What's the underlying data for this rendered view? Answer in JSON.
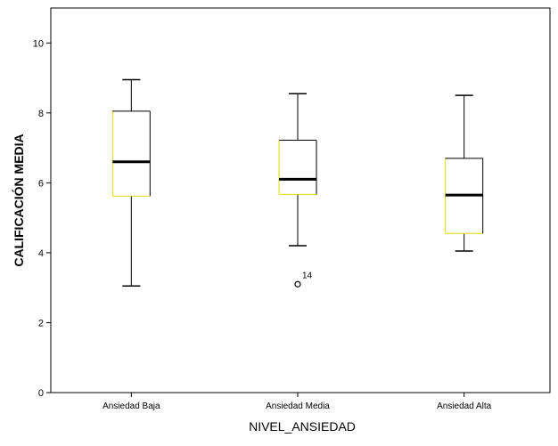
{
  "chart_data": {
    "type": "boxplot",
    "xlabel": "NIVEL_ANSIEDAD",
    "ylabel": "CALIFICACIÓN MEDIA",
    "ylim": [
      0,
      11
    ],
    "yticks": [
      0,
      2,
      4,
      6,
      8,
      10
    ],
    "ytick_labels": [
      "0",
      "2",
      "4",
      "6",
      "8",
      "10"
    ],
    "grid": false,
    "categories": [
      "Ansiedad Baja",
      "Ansiedad Media",
      "Ansiedad Alta"
    ],
    "boxes": [
      {
        "category": "Ansiedad Baja",
        "min": 3.05,
        "q1": 5.62,
        "median": 6.6,
        "q3": 8.05,
        "max": 8.95,
        "outliers": []
      },
      {
        "category": "Ansiedad Media",
        "min": 4.2,
        "q1": 5.67,
        "median": 6.1,
        "q3": 7.22,
        "max": 8.55,
        "outliers": [
          {
            "value": 3.1,
            "label": "14"
          }
        ]
      },
      {
        "category": "Ansiedad Alta",
        "min": 4.05,
        "q1": 4.55,
        "median": 5.65,
        "q3": 6.7,
        "max": 8.5,
        "outliers": []
      }
    ],
    "colors": {
      "box_edge": "#000000",
      "box_edge_accent": "#e6d800",
      "median": "#000000",
      "background": "#ffffff"
    }
  }
}
